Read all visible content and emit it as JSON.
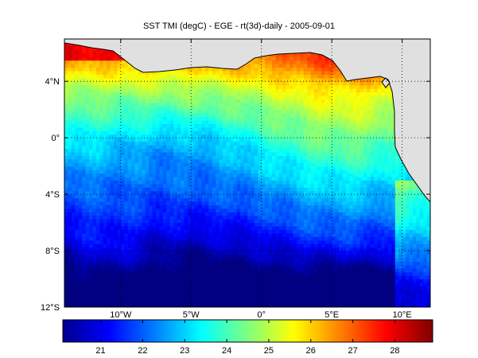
{
  "title": "SST TMI  (degC) - EGE - rt(3d)-daily - 2005-09-01",
  "map": {
    "lon_range": [
      -14,
      12
    ],
    "lat_range": [
      -12,
      7
    ],
    "lat_ticks": [
      {
        "value": 4,
        "label": "4°N"
      },
      {
        "value": 0,
        "label": "0°"
      },
      {
        "value": -4,
        "label": "4°S"
      },
      {
        "value": -8,
        "label": "8°S"
      },
      {
        "value": -12,
        "label": "12°S"
      }
    ],
    "lon_ticks": [
      {
        "value": -10,
        "label": "10°W"
      },
      {
        "value": -5,
        "label": "5°W"
      },
      {
        "value": 0,
        "label": "0°"
      },
      {
        "value": 5,
        "label": "5°E"
      },
      {
        "value": 10,
        "label": "10°E"
      }
    ],
    "grid": true,
    "land_color": "#e0e0e0",
    "coast_color": "#000000"
  },
  "colorbar": {
    "range": [
      20.1,
      28.9
    ],
    "ticks": [
      21,
      22,
      23,
      24,
      25,
      26,
      27,
      28
    ],
    "colormap": "jet"
  }
}
